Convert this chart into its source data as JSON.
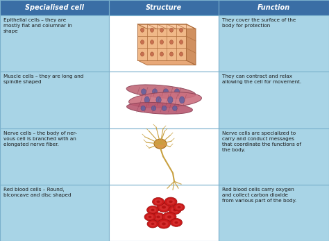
{
  "title_bg": "#3a6ea5",
  "row_bg_left": "#a8d4e6",
  "row_bg_center": "#ffffff",
  "row_bg_right": "#a8d4e6",
  "header_text_color": "#ffffff",
  "body_text_color": "#1a1a1a",
  "border_color": "#7ab0cc",
  "headers": [
    "Specialised cell",
    "Structure",
    "Function"
  ],
  "rows": [
    {
      "cell": "Epithelial cells – they are\nmostly flat and columnar in\nshape",
      "function": "They cover the surface of the\nbody for protection"
    },
    {
      "cell": "Muscle cells – they are long and\nspindle shaped",
      "function": "They can contract and relax\nallowing the cell for movement."
    },
    {
      "cell": "Nerve cells – the body of ner-\nvous cell is branched with an\nelongated nerve fiber.",
      "function": "Nerve cells are specialized to\ncarry and conduct messages\nthat coordinate the functions of\nthe body."
    },
    {
      "cell": "Red blood cells – Round,\nbiconcave and disc shaped",
      "function": "Red blood cells carry oxygen\nand collect carbon dioxide\nfrom various part of the body."
    }
  ],
  "figsize": [
    4.74,
    3.47
  ],
  "dpi": 100
}
